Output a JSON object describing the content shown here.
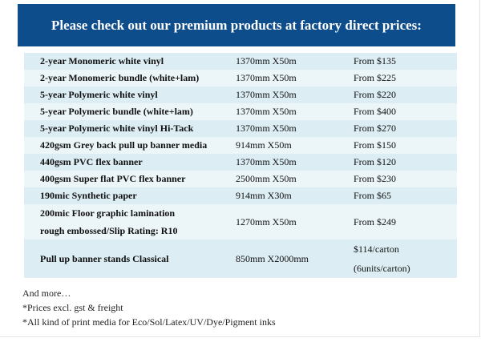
{
  "header": {
    "title": "Please check out our premium products at factory direct prices:"
  },
  "table": {
    "rows": [
      [
        [
          "2-year Monomeric  white vinyl"
        ],
        [
          "1370mm  X50m"
        ],
        [
          "From  $135"
        ]
      ],
      [
        [
          "2-year Monomeric  bundle  (white+lam)"
        ],
        [
          "1370mm  X50m"
        ],
        [
          "From  $225"
        ]
      ],
      [
        [
          "5-year Polymeric white vinyl"
        ],
        [
          "1370mm  X50m"
        ],
        [
          "From  $220"
        ]
      ],
      [
        [
          "5-year Polymeric bundle  (white+lam)"
        ],
        [
          "1370mm  X50m"
        ],
        [
          "From  $400"
        ]
      ],
      [
        [
          "5-year Polymeric white vinyl Hi-Tack"
        ],
        [
          "1370mm  X50m"
        ],
        [
          "From  $270"
        ]
      ],
      [
        [
          "420gsm Grey back pull up banner media"
        ],
        [
          "914mm  X50m"
        ],
        [
          "From  $150"
        ]
      ],
      [
        [
          "440gsm PVC flex banner"
        ],
        [
          "1370mm  X50m"
        ],
        [
          "From  $120"
        ]
      ],
      [
        [
          "400gsm Super flat  PVC flex banner"
        ],
        [
          "2500mm  X50m"
        ],
        [
          "From  $230"
        ]
      ],
      [
        [
          "190mic Synthetic paper"
        ],
        [
          "914mm  X30m"
        ],
        [
          "From  $65"
        ]
      ],
      [
        [
          "200mic Floor graphic lamination",
          "rough embossed/Slip Rating:  R10"
        ],
        [
          "1270mm  X50m"
        ],
        [
          "From  $249"
        ]
      ],
      [
        [
          "Pull up banner stands Classical"
        ],
        [
          "850mm  X2000mm"
        ],
        [
          "$114/carton",
          "(6units/carton)"
        ]
      ]
    ]
  },
  "notes": [
    "And more…",
    "*Prices excl. gst & freight",
    "*All kind of print media for Eco/Sol/Latex/UV/Dye/Pigment inks"
  ]
}
